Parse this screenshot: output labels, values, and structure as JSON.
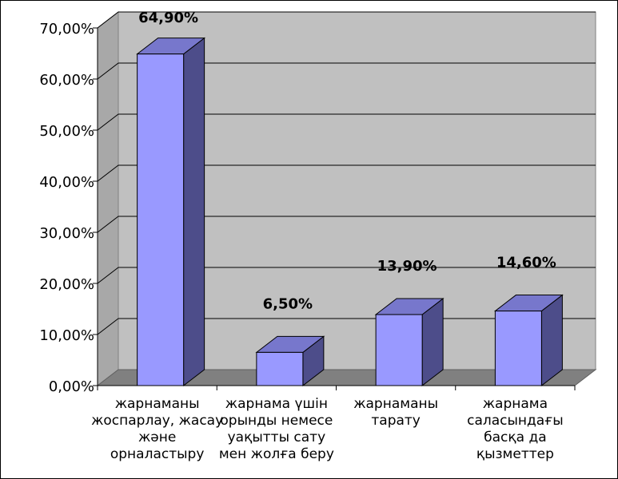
{
  "chart_data": {
    "type": "bar",
    "categories": [
      [
        "жарнаманы",
        "жоспарлау, жасау",
        "және",
        "орналастыру"
      ],
      [
        "жарнама үшін",
        "орынды немесе",
        "уақытты сату",
        "мен жолға беру"
      ],
      [
        "жарнаманы",
        "тарату"
      ],
      [
        "жарнама",
        "саласындағы",
        "басқа да",
        "қызметтер"
      ]
    ],
    "values": [
      64.9,
      6.5,
      13.9,
      14.6
    ],
    "data_labels": [
      "64,90%",
      "6,50%",
      "13,90%",
      "14,60%"
    ],
    "y_ticks": [
      "0,00%",
      "10,00%",
      "20,00%",
      "30,00%",
      "40,00%",
      "50,00%",
      "60,00%",
      "70,00%"
    ],
    "ylim": [
      0,
      70
    ],
    "grid": true,
    "legend": "none",
    "colors": {
      "bar_front": "#9999ff",
      "bar_side": "#4d4d8a",
      "bar_top": "#7777cc",
      "wall": "#c0c0c0",
      "floor": "#808080"
    }
  }
}
